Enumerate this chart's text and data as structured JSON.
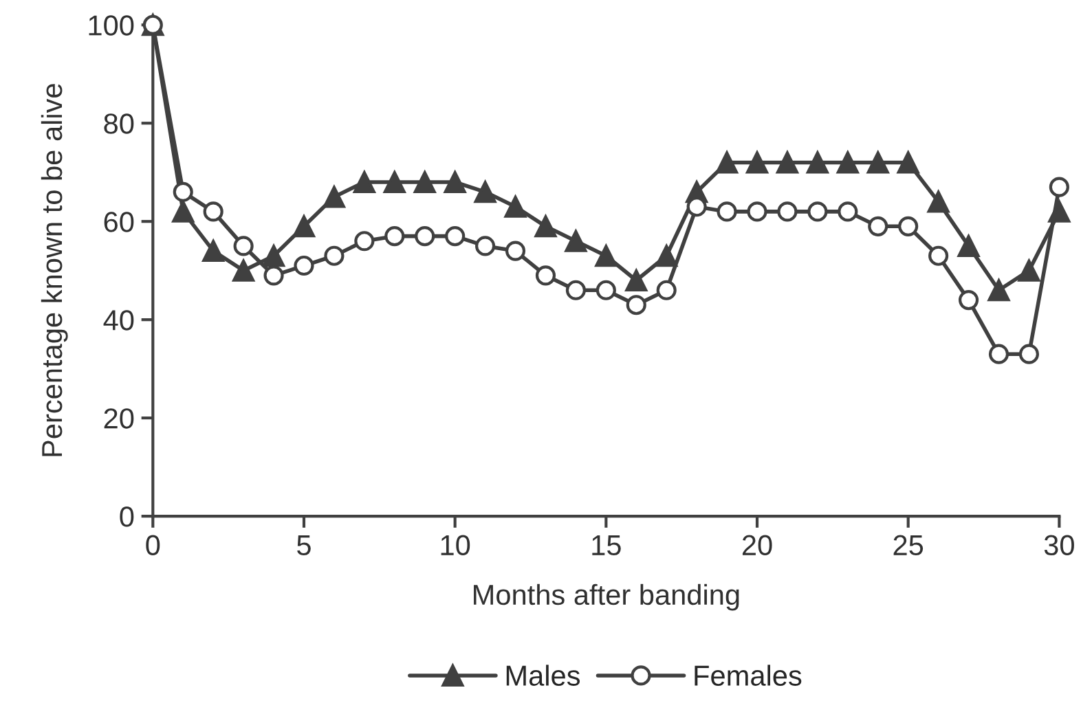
{
  "chart_data": {
    "type": "line",
    "xlabel": "Months after banding",
    "ylabel": "Percentage known to be alive",
    "x": [
      0,
      1,
      2,
      3,
      4,
      5,
      6,
      7,
      8,
      9,
      10,
      11,
      12,
      13,
      14,
      15,
      16,
      17,
      18,
      19,
      20,
      21,
      22,
      23,
      24,
      25,
      26,
      27,
      28,
      29,
      30
    ],
    "series": [
      {
        "name": "Males",
        "color": "#404040",
        "marker": "triangle",
        "values": [
          100,
          62,
          54,
          50,
          53,
          59,
          65,
          68,
          68,
          68,
          68,
          66,
          63,
          59,
          56,
          53,
          48,
          53,
          66,
          72,
          72,
          72,
          72,
          72,
          72,
          72,
          64,
          55,
          46,
          50,
          62
        ]
      },
      {
        "name": "Females",
        "color": "#404040",
        "marker": "circle",
        "values": [
          100,
          66,
          62,
          55,
          49,
          51,
          53,
          56,
          57,
          57,
          57,
          55,
          54,
          49,
          46,
          46,
          43,
          46,
          63,
          62,
          62,
          62,
          62,
          62,
          59,
          59,
          53,
          44,
          33,
          33,
          67
        ]
      }
    ],
    "xlim": [
      0,
      30
    ],
    "xticks": [
      0,
      5,
      10,
      15,
      20,
      25,
      30
    ],
    "ylim": [
      0,
      100
    ],
    "yticks": [
      0,
      20,
      40,
      60,
      80,
      100
    ],
    "grid": false,
    "legend": "bottom",
    "line_style": "solid"
  }
}
